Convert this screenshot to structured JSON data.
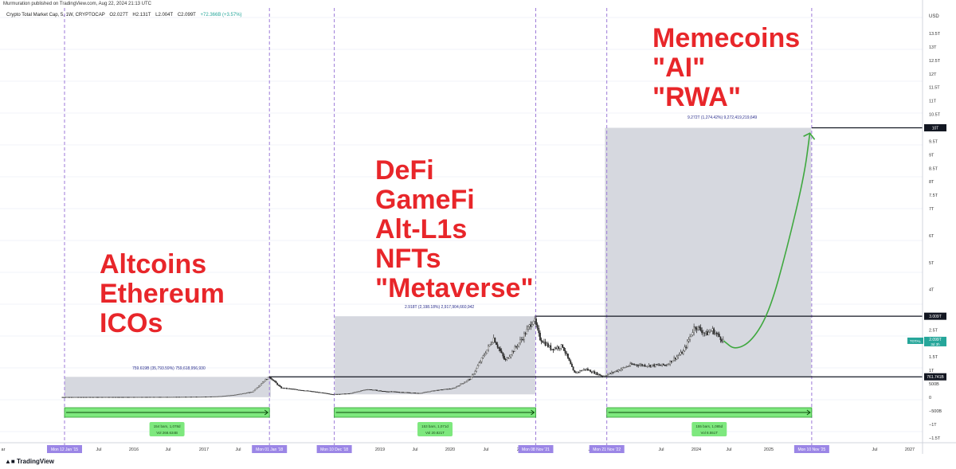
{
  "publisher_line": "Murmuration published on TradingView.com, Aug 22, 2024 21:13 UTC",
  "legend": {
    "symbol": "Crypto Total Market Cap, 5, 1W, CRYPTOCAP",
    "open": "O2.027T",
    "high": "H2.131T",
    "low": "L2.004T",
    "close": "C2.099T",
    "change": "+72.366B (+3.57%)"
  },
  "brand": "TradingView",
  "colors": {
    "annotation": "#e8262a",
    "candle_up": "#26a69a",
    "candle_down": "#ef5350",
    "candle_dark": "#3a3a3a",
    "measure_box": "#d1d4dc",
    "range_bar": "#7ee87e",
    "projection": "#3fa83f",
    "vline": "#9c7ad8",
    "date_badge": "#9b86e6",
    "price_badge": "#131722"
  },
  "annotations": [
    {
      "id": "cycle1",
      "lines": [
        "Altcoins",
        "Ethereum",
        "ICOs"
      ]
    },
    {
      "id": "cycle2",
      "lines": [
        "DeFi",
        "GameFi",
        "Alt-L1s",
        "NFTs",
        "\"Metaverse\""
      ]
    },
    {
      "id": "cycle3",
      "lines": [
        "Memecoins",
        "\"AI\"",
        "\"RWA\""
      ]
    }
  ],
  "measures": [
    {
      "label": "759.619B (35,793.59%) 759,618,956,930",
      "range": "154 bars, 1,078d",
      "vol": "Vol 268.634B"
    },
    {
      "label": "2.918T (2,198.18%) 2,917,904,660,942",
      "range": "153 bars, 1,071d",
      "vol": "Vol 20.821T"
    },
    {
      "label": "9.272T (1,274.42%) 9,272,419,219,649",
      "range": "155 bars, 1,085d",
      "vol": "Vol 8.551T"
    }
  ],
  "chart_data": {
    "type": "line",
    "title": "Crypto Total Market Cap, 5, 1W, CRYPTOCAP",
    "currency": "USD",
    "y_unit": "USD (T = trillion)",
    "ylim": [
      -1.5,
      14
    ],
    "xlim": [
      "2015-01",
      "2027-06"
    ],
    "y_ticks": [
      "13.5T",
      "13T",
      "12.5T",
      "12T",
      "11.5T",
      "11T",
      "10.5T",
      "10T",
      "9.5T",
      "9T",
      "8.5T",
      "8T",
      "7.5T",
      "7T",
      "6T",
      "5T",
      "4T",
      "3T",
      "2.5T",
      "2T",
      "1.5T",
      "1T",
      "500B",
      "0",
      "−500B",
      "−1T",
      "−1.5T"
    ],
    "x_ticks": [
      "ar",
      "Jul",
      "2016",
      "Jul",
      "2017",
      "Jul",
      "2019",
      "Jul",
      "2020",
      "Jul",
      "2021",
      "Jul",
      "Jul",
      "2024",
      "Jul",
      "2025",
      "Jul",
      "Jul",
      "2027"
    ],
    "date_badges": [
      "Mon 12 Jan '15",
      "Mon 01 Jan '18",
      "Mon 10 Dec '18",
      "Mon 08 Nov '21",
      "Mon 21 Nov '22",
      "Mon 10 Nov '25"
    ],
    "price_levels": [
      {
        "label": "10T",
        "value": 10
      },
      {
        "label": "3.009T",
        "value": 3.009
      },
      {
        "label": "761.741B",
        "value": 0.761741
      }
    ],
    "current": {
      "label": "TOTAL",
      "value_label": "2.099T",
      "countdown": "3d 3h",
      "value": 2.099
    },
    "series": [
      {
        "name": "TOTAL",
        "points": [
          [
            "2015-01",
            0.005
          ],
          [
            "2015-07",
            0.006
          ],
          [
            "2016-01",
            0.007
          ],
          [
            "2016-07",
            0.011
          ],
          [
            "2017-01",
            0.018
          ],
          [
            "2017-04",
            0.03
          ],
          [
            "2017-07",
            0.09
          ],
          [
            "2017-10",
            0.2
          ],
          [
            "2017-12",
            0.6
          ],
          [
            "2018-01",
            0.76
          ],
          [
            "2018-03",
            0.35
          ],
          [
            "2018-06",
            0.28
          ],
          [
            "2018-09",
            0.2
          ],
          [
            "2018-12",
            0.11
          ],
          [
            "2019-03",
            0.14
          ],
          [
            "2019-06",
            0.3
          ],
          [
            "2019-09",
            0.22
          ],
          [
            "2019-12",
            0.19
          ],
          [
            "2020-03",
            0.15
          ],
          [
            "2020-06",
            0.26
          ],
          [
            "2020-09",
            0.33
          ],
          [
            "2020-12",
            0.7
          ],
          [
            "2021-02",
            1.45
          ],
          [
            "2021-04",
            2.2
          ],
          [
            "2021-06",
            1.35
          ],
          [
            "2021-08",
            1.9
          ],
          [
            "2021-09",
            2.2
          ],
          [
            "2021-11",
            2.92
          ],
          [
            "2021-12",
            2.2
          ],
          [
            "2022-02",
            1.8
          ],
          [
            "2022-04",
            1.9
          ],
          [
            "2022-06",
            0.9
          ],
          [
            "2022-08",
            1.05
          ],
          [
            "2022-11",
            0.78
          ],
          [
            "2023-01",
            0.95
          ],
          [
            "2023-04",
            1.22
          ],
          [
            "2023-07",
            1.18
          ],
          [
            "2023-10",
            1.2
          ],
          [
            "2024-01",
            1.7
          ],
          [
            "2024-03",
            2.65
          ],
          [
            "2024-05",
            2.35
          ],
          [
            "2024-06",
            2.5
          ],
          [
            "2024-08",
            2.099
          ]
        ]
      },
      {
        "name": "projection",
        "points": [
          [
            "2024-08",
            2.099
          ],
          [
            "2024-10",
            1.75
          ],
          [
            "2025-01",
            2.1
          ],
          [
            "2025-04",
            3.2
          ],
          [
            "2025-07",
            5.5
          ],
          [
            "2025-10",
            8.2
          ],
          [
            "2025-11",
            9.8
          ]
        ]
      }
    ],
    "grid": true,
    "legend_position": "top-left"
  }
}
